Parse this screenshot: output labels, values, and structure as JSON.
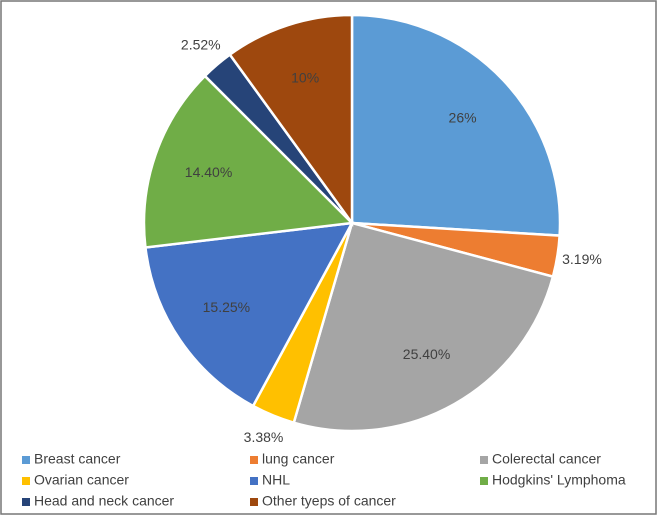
{
  "chart_data": {
    "type": "pie",
    "categories": [
      "Breast cancer",
      "lung cancer",
      "Colerectal cancer",
      "Ovarian cancer",
      "NHL",
      "Hodgkins' Lymphoma",
      "Head and neck cancer",
      "Other tyeps of cancer"
    ],
    "values": [
      26,
      3.19,
      25.4,
      3.38,
      15.25,
      14.4,
      2.52,
      10
    ],
    "value_labels": [
      "26%",
      "3.19%",
      "25.40%",
      "3.38%",
      "15.25%",
      "14.40%",
      "2.52%",
      "10%"
    ],
    "colors": [
      "#5b9bd5",
      "#ed7d31",
      "#a5a5a5",
      "#ffc000",
      "#4472c4",
      "#70ad47",
      "#264478",
      "#9e480e"
    ],
    "legend": "bottom"
  }
}
